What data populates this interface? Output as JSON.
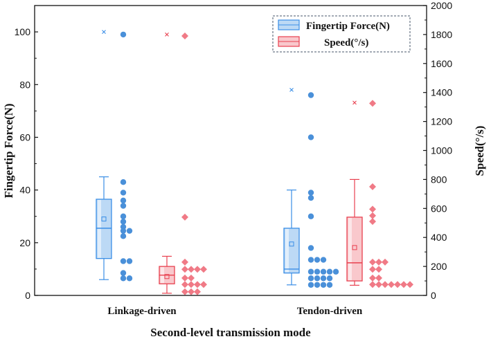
{
  "chart_data": {
    "type": "box",
    "title": "",
    "xlabel": "Second-level transmission mode",
    "ylabel_left": "Fingertip Force(N)",
    "ylabel_right": "Speed(°/s)",
    "categories": [
      "Linkage-driven",
      "Tendon-driven"
    ],
    "ylim_left": [
      0,
      110
    ],
    "yticks_left": [
      0,
      20,
      40,
      60,
      80,
      100
    ],
    "ylim_right": [
      0,
      2000
    ],
    "yticks_right": [
      0,
      200,
      400,
      600,
      800,
      1000,
      1200,
      1400,
      1600,
      1800,
      2000
    ],
    "colors": {
      "force_fill": "#bcd9f5",
      "force_edge": "#3a8ee6",
      "force_dot": "#4a90d9",
      "speed_fill": "#f9c8cc",
      "speed_edge": "#e8404f",
      "speed_dot": "#f07a86",
      "legend_border": "#44546a"
    },
    "series": [
      {
        "name": "Fingertip Force(N)",
        "axis": "left",
        "boxes": [
          {
            "category": "Linkage-driven",
            "min": 6,
            "q1": 14,
            "median": 25.5,
            "q3": 36.5,
            "max": 45,
            "mean": 29,
            "outlier_x": 100,
            "points": [
              99,
              43,
              39,
              36,
              34,
              30,
              28,
              26,
              24.5,
              24.5,
              22.5,
              13,
              13,
              8.5,
              6.5,
              6.5
            ]
          },
          {
            "category": "Tendon-driven",
            "min": 4,
            "q1": 8.5,
            "median": 10,
            "q3": 25.5,
            "max": 40,
            "mean": 19.5,
            "outlier_x": 78,
            "points": [
              76,
              60,
              39,
              37,
              30,
              18,
              13.5,
              13.5,
              13.5,
              9,
              9,
              9,
              9,
              9,
              6.5,
              6.5,
              6.5,
              6.5,
              4,
              4,
              4,
              4
            ]
          }
        ]
      },
      {
        "name": "Speed(°/s)",
        "axis": "right",
        "boxes": [
          {
            "category": "Linkage-driven",
            "min": 15,
            "q1": 80,
            "median": 140,
            "q3": 200,
            "max": 270,
            "mean": 130,
            "outlier_x": 1800,
            "points": [
              1790,
              540,
              230,
              180,
              180,
              180,
              180,
              120,
              120,
              75,
              75,
              75,
              75,
              25,
              25,
              25
            ]
          },
          {
            "category": "Tendon-driven",
            "min": 70,
            "q1": 100,
            "median": 225,
            "q3": 540,
            "max": 800,
            "mean": 330,
            "outlier_x": 1330,
            "points": [
              1325,
              750,
              595,
              550,
              510,
              230,
              230,
              230,
              180,
              180,
              120,
              120,
              75,
              75,
              75,
              75,
              75,
              75,
              75
            ]
          }
        ]
      }
    ],
    "legend": {
      "position": "top-right",
      "entries": [
        "Fingertip Force(N)",
        "Speed(°/s)"
      ]
    }
  }
}
